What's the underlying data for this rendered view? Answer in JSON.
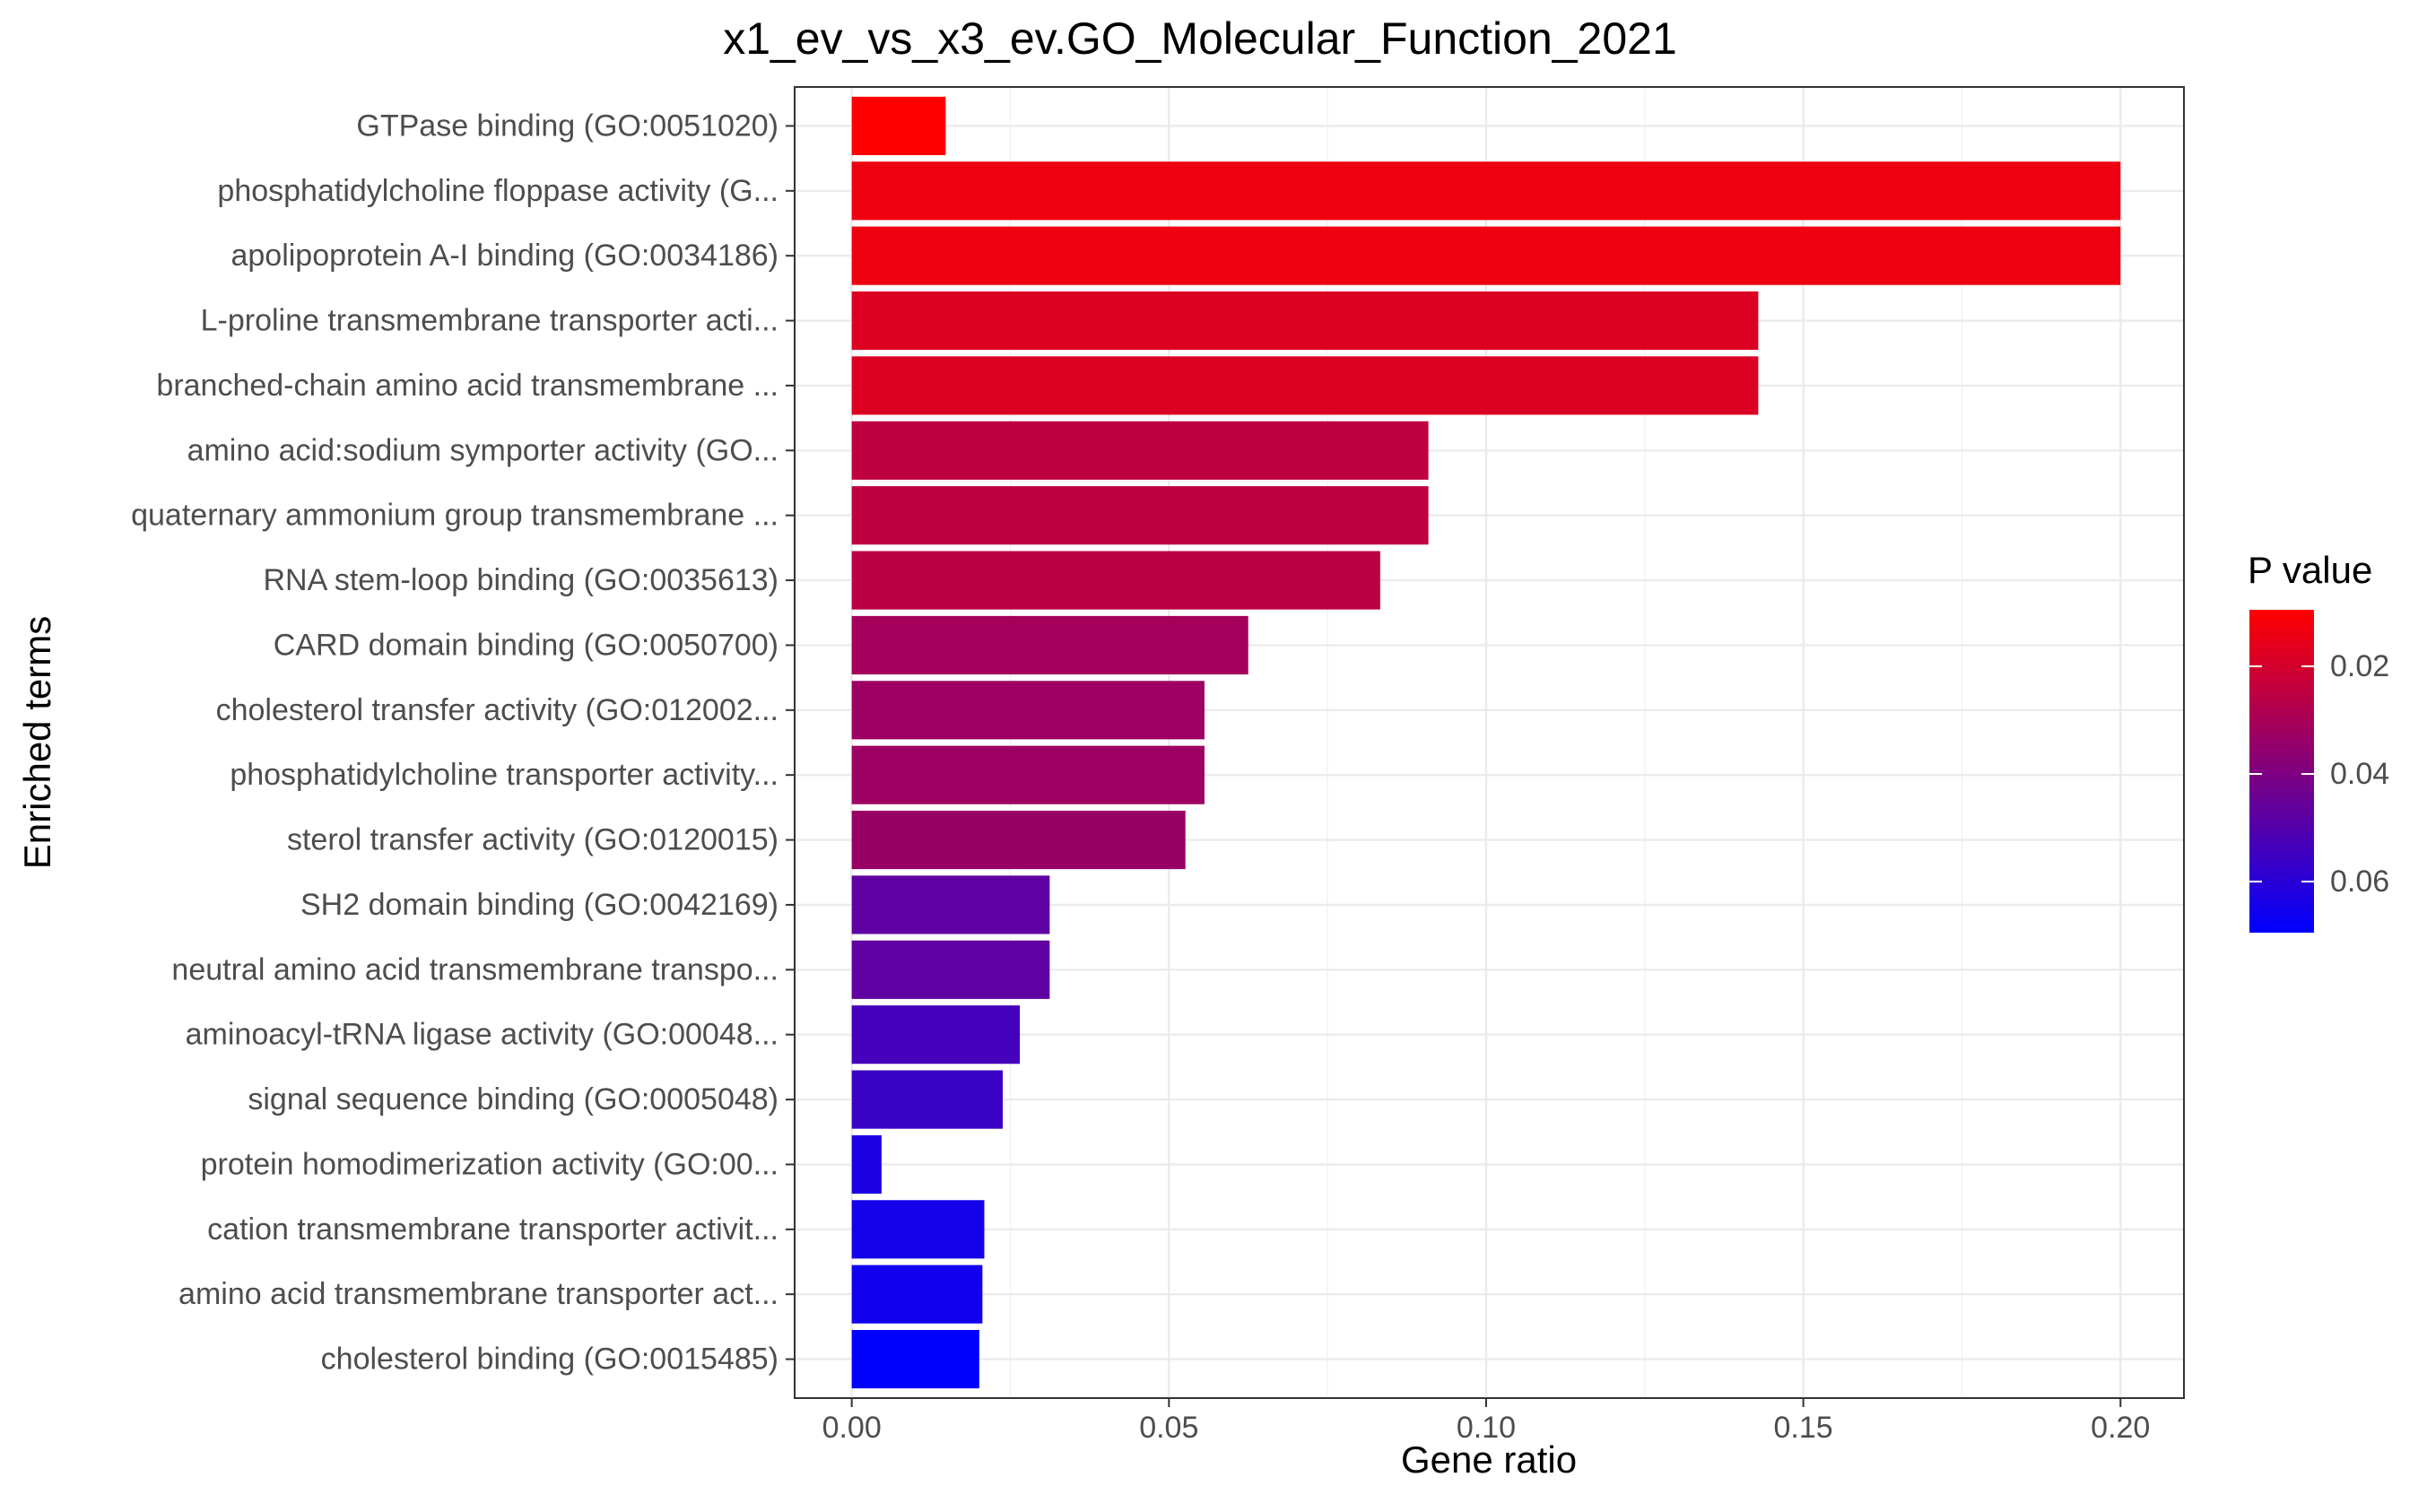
{
  "chart_data": {
    "type": "bar",
    "orientation": "horizontal",
    "title": "x1_ev_vs_x3_ev.GO_Molecular_Function_2021",
    "xlabel": "Gene ratio",
    "ylabel": "Enriched terms",
    "xlim": [
      -0.009,
      0.21
    ],
    "xticks": [
      0.0,
      0.05,
      0.1,
      0.15,
      0.2
    ],
    "xtick_labels": [
      "0.00",
      "0.05",
      "0.10",
      "0.15",
      "0.20"
    ],
    "grid": true,
    "categories": [
      "GTPase binding (GO:0051020)",
      "phosphatidylcholine floppase activity (G...",
      "apolipoprotein A-I binding (GO:0034186)",
      "L-proline transmembrane transporter acti...",
      "branched-chain amino acid transmembrane ...",
      "amino acid:sodium symporter activity (GO...",
      "quaternary ammonium group transmembrane ...",
      "RNA stem-loop binding (GO:0035613)",
      "CARD domain binding (GO:0050700)",
      "cholesterol transfer activity (GO:012002...",
      "phosphatidylcholine transporter activity...",
      "sterol transfer activity (GO:0120015)",
      "SH2 domain binding (GO:0042169)",
      "neutral amino acid transmembrane transpo...",
      "aminoacyl-tRNA ligase activity (GO:00048...",
      "signal sequence binding (GO:0005048)",
      "protein homodimerization activity (GO:00...",
      "cation transmembrane transporter activit...",
      "amino acid transmembrane transporter act...",
      "cholesterol binding (GO:0015485)"
    ],
    "values": [
      0.0148,
      0.2,
      0.2,
      0.1429,
      0.1429,
      0.0909,
      0.0909,
      0.0833,
      0.0625,
      0.0556,
      0.0556,
      0.0526,
      0.0312,
      0.0312,
      0.0265,
      0.0238,
      0.0047,
      0.0209,
      0.0206,
      0.0201
    ],
    "p_values": [
      0.0095,
      0.0135,
      0.0135,
      0.0178,
      0.0178,
      0.0245,
      0.0245,
      0.0255,
      0.031,
      0.0325,
      0.0325,
      0.0335,
      0.0475,
      0.0475,
      0.0535,
      0.056,
      0.063,
      0.0645,
      0.0655,
      0.0695
    ],
    "legend": {
      "title": "P value",
      "placement": "right",
      "range": [
        0.0095,
        0.0695
      ],
      "ticks": [
        0.02,
        0.04,
        0.06
      ],
      "tick_labels": [
        "0.02",
        "0.04",
        "0.06"
      ],
      "low_color": "#FF0000",
      "high_color": "#0000FF"
    }
  }
}
